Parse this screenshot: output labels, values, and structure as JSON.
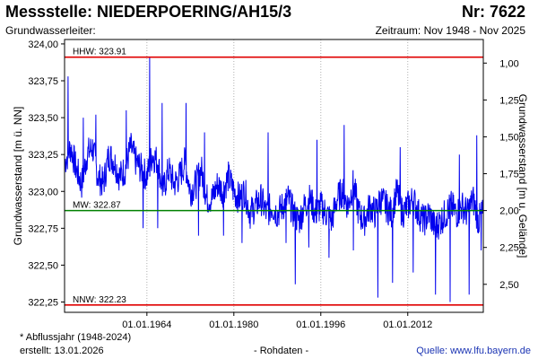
{
  "header": {
    "title": "Messstelle: NIEDERPOERING/AH15/3",
    "number": "Nr: 7622",
    "aquifer": "Grundwasserleiter:",
    "period": "Zeitraum: Nov 1948 - Nov 2025"
  },
  "footer": {
    "note": "* Abflussjahr (1948-2024)",
    "created": "erstellt:  13.01.2026",
    "rawdata": "- Rohdaten -",
    "source": "Quelle:  www.lfu.bayern.de"
  },
  "colors": {
    "series": "#0000ee",
    "extreme_lines": "#e00000",
    "mean_line": "#008000",
    "grid": "#b0b0b0",
    "axes": "#000000"
  },
  "chart_data": {
    "type": "line",
    "ylabel": "Grundwasserstand [m ü. NN]",
    "y2label": "Grundwasserstand [m u. Gelände]",
    "x_ticks": [
      "01.01.1964",
      "01.01.1980",
      "01.01.1996",
      "01.01.2012"
    ],
    "x_tick_years": [
      1964,
      1980,
      1996,
      2012
    ],
    "xlim": [
      1948.85,
      2025.9
    ],
    "ylim": [
      322.18,
      324.03
    ],
    "y_ticks": [
      324.0,
      323.75,
      323.5,
      323.25,
      323.0,
      322.75,
      322.5,
      322.25
    ],
    "y_tick_labels": [
      "324,00",
      "323,75",
      "323,50",
      "323,25",
      "323,00",
      "322,75",
      "322,50",
      "322,25"
    ],
    "y2_ticks": [
      1.0,
      1.25,
      1.5,
      1.75,
      2.0,
      2.25,
      2.5
    ],
    "y2_tick_labels": [
      "1,00",
      "1,25",
      "1,50",
      "1,75",
      "2,00",
      "2,25",
      "2,50"
    ],
    "y2_ground_level": 324.87,
    "grid": "vertical-dotted",
    "reference_lines": [
      {
        "label": "HHW: 323.91",
        "value": 323.91,
        "color": "#e00000"
      },
      {
        "label": "MW: 322.87",
        "value": 322.87,
        "color": "#008000"
      },
      {
        "label": "NNW: 322.23",
        "value": 322.23,
        "color": "#e00000"
      }
    ],
    "series": [
      {
        "x": [
          1948.9,
          1950,
          1951,
          1952,
          1953,
          1954,
          1955,
          1956,
          1957,
          1958,
          1959,
          1960,
          1961,
          1962,
          1963,
          1964,
          1965,
          1966,
          1967,
          1968,
          1969,
          1970,
          1971,
          1972,
          1973,
          1974,
          1975,
          1976,
          1977,
          1978,
          1979,
          1980,
          1981,
          1982,
          1983,
          1984,
          1985,
          1986,
          1987,
          1988,
          1989,
          1990,
          1991,
          1992,
          1993,
          1994,
          1995,
          1996,
          1997,
          1998,
          1999,
          2000,
          2001,
          2002,
          2003,
          2004,
          2005,
          2006,
          2007,
          2008,
          2009,
          2010,
          2011,
          2012,
          2013,
          2014,
          2015,
          2016,
          2017,
          2018,
          2019,
          2020,
          2021,
          2022,
          2023,
          2024,
          2025,
          2025.8
        ],
        "y": [
          323.2,
          323.3,
          323.15,
          323.05,
          323.25,
          323.3,
          323.1,
          323.05,
          323.25,
          323.2,
          323.1,
          323.15,
          323.3,
          323.2,
          323.15,
          323.1,
          323.25,
          323.2,
          323.0,
          323.15,
          323.05,
          323.1,
          323.2,
          323.0,
          323.05,
          323.15,
          322.95,
          322.95,
          323.05,
          323.0,
          323.1,
          323.0,
          322.95,
          323.0,
          322.85,
          322.9,
          322.95,
          322.85,
          322.9,
          322.85,
          322.9,
          322.95,
          322.85,
          322.8,
          322.9,
          322.95,
          322.85,
          322.9,
          322.85,
          322.8,
          322.95,
          323.0,
          322.9,
          323.05,
          322.85,
          322.8,
          322.9,
          322.85,
          322.95,
          322.9,
          322.85,
          323.0,
          322.85,
          322.9,
          322.95,
          322.85,
          322.8,
          322.85,
          322.75,
          322.8,
          322.85,
          322.9,
          322.85,
          322.9,
          322.85,
          322.95,
          322.8,
          322.85
        ],
        "spikes": [
          {
            "x": 1949.5,
            "y": 323.78
          },
          {
            "x": 1952.3,
            "y": 323.5
          },
          {
            "x": 1954.6,
            "y": 323.52
          },
          {
            "x": 1960.2,
            "y": 323.55
          },
          {
            "x": 1963.3,
            "y": 322.75
          },
          {
            "x": 1964.5,
            "y": 323.91
          },
          {
            "x": 1966.0,
            "y": 322.75
          },
          {
            "x": 1966.8,
            "y": 323.6
          },
          {
            "x": 1971.2,
            "y": 323.6
          },
          {
            "x": 1973.5,
            "y": 322.7
          },
          {
            "x": 1974.6,
            "y": 323.4
          },
          {
            "x": 1978.1,
            "y": 322.7
          },
          {
            "x": 1981.5,
            "y": 322.65
          },
          {
            "x": 1986.3,
            "y": 323.4
          },
          {
            "x": 1989.6,
            "y": 322.65
          },
          {
            "x": 1991.3,
            "y": 322.37
          },
          {
            "x": 1993.8,
            "y": 322.62
          },
          {
            "x": 1995.3,
            "y": 323.35
          },
          {
            "x": 1997.5,
            "y": 322.55
          },
          {
            "x": 2000.3,
            "y": 323.45
          },
          {
            "x": 2002.0,
            "y": 322.6
          },
          {
            "x": 2006.5,
            "y": 322.28
          },
          {
            "x": 2009.2,
            "y": 322.38
          },
          {
            "x": 2010.6,
            "y": 323.3
          },
          {
            "x": 2013.0,
            "y": 322.45
          },
          {
            "x": 2017.1,
            "y": 322.3
          },
          {
            "x": 2019.8,
            "y": 322.25
          },
          {
            "x": 2021.5,
            "y": 323.25
          },
          {
            "x": 2023.3,
            "y": 322.3
          },
          {
            "x": 2024.7,
            "y": 323.38
          },
          {
            "x": 2025.5,
            "y": 322.6
          }
        ]
      }
    ]
  }
}
